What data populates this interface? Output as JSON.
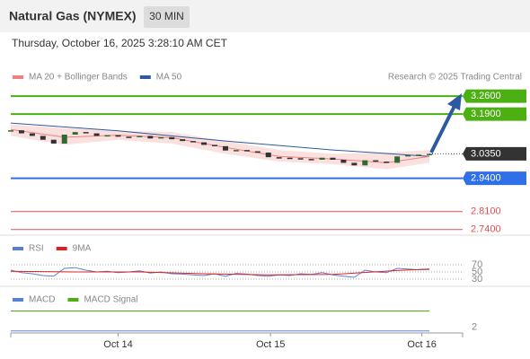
{
  "header": {
    "title": "Natural Gas (NYMEX)",
    "interval": "30 MIN",
    "timestamp": "Thursday, October 16, 2025 3:28:10 AM CET"
  },
  "chart_data": [
    {
      "type": "candlestick",
      "annotation": "Research © 2025 Trading Central",
      "up_color": "#2e6b2e",
      "down_color": "#333333",
      "values": [
        3.127,
        3.115,
        3.105,
        3.09,
        3.075,
        3.11,
        3.12,
        3.115,
        3.105,
        3.108,
        3.102,
        3.1,
        3.105,
        3.095,
        3.1,
        3.092,
        3.085,
        3.08,
        3.07,
        3.065,
        3.048,
        3.05,
        3.045,
        3.04,
        3.022,
        3.02,
        3.018,
        3.015,
        3.012,
        3.02,
        3.012,
        3.0,
        2.99,
        3.01,
        3.005,
        3.0,
        3.025,
        3.03,
        3.032,
        3.035
      ],
      "series": [
        {
          "name": "MA 20 + Bollinger Bands",
          "color": "#f08080",
          "band_color": "#fbe0e0",
          "x": [
            0,
            5,
            10,
            15,
            20,
            25,
            30,
            35,
            39
          ],
          "values": [
            3.13,
            3.1,
            3.108,
            3.098,
            3.06,
            3.025,
            3.015,
            3.0,
            3.025
          ],
          "upper": [
            3.15,
            3.135,
            3.125,
            3.12,
            3.085,
            3.05,
            3.035,
            3.04,
            3.05
          ],
          "lower": [
            3.105,
            3.07,
            3.09,
            3.075,
            3.035,
            3.005,
            2.995,
            2.975,
            3.0
          ]
        },
        {
          "name": "MA 50",
          "color": "#2c5aa0",
          "x": [
            0,
            10,
            20,
            30,
            39
          ],
          "values": [
            3.155,
            3.125,
            3.085,
            3.05,
            3.025
          ]
        }
      ],
      "levels": [
        {
          "value": 3.26,
          "label": "3.2600",
          "color": "#4caf12",
          "style": "filled"
        },
        {
          "value": 3.19,
          "label": "3.1900",
          "color": "#4caf12",
          "style": "filled"
        },
        {
          "value": 3.035,
          "label": "3.0350",
          "color": "#333333",
          "style": "current"
        },
        {
          "value": 2.94,
          "label": "2.9400",
          "color": "#2f6fe8",
          "style": "filled"
        },
        {
          "value": 2.81,
          "label": "2.8100",
          "color": "#e05050",
          "style": "plain"
        },
        {
          "value": 2.74,
          "label": "2.7400",
          "color": "#e05050",
          "style": "plain"
        }
      ],
      "xlim": [
        0,
        39
      ],
      "ylim": [
        2.725,
        3.355
      ],
      "xticks": [
        {
          "value": 10,
          "label": "Oct 14"
        },
        {
          "value": 24.2,
          "label": "Oct 15"
        },
        {
          "value": 38.3,
          "label": "Oct 16"
        }
      ]
    },
    {
      "type": "line",
      "series": [
        {
          "name": "RSI",
          "color": "#5b7fd6",
          "values": [
            55,
            48,
            45,
            40,
            38,
            60,
            62,
            55,
            50,
            52,
            48,
            50,
            53,
            47,
            50,
            45,
            44,
            42,
            40,
            45,
            38,
            46,
            44,
            40,
            38,
            42,
            40,
            45,
            43,
            48,
            42,
            38,
            35,
            55,
            50,
            48,
            60,
            58,
            56,
            57
          ]
        },
        {
          "name": "9MA",
          "color": "#e02020",
          "x": [
            0,
            6,
            12,
            18,
            24,
            30,
            36,
            39
          ],
          "values": [
            52,
            50,
            50,
            45,
            42,
            43,
            54,
            58
          ]
        }
      ],
      "xlim": [
        0,
        39
      ],
      "ylim": [
        20,
        80
      ],
      "yticks": [
        70,
        50,
        30
      ]
    },
    {
      "type": "line",
      "series": [
        {
          "name": "MACD",
          "color": "#5b7fd6",
          "x": [
            0,
            39
          ],
          "values": [
            1.5,
            1.5
          ]
        },
        {
          "name": "MACD Signal",
          "color": "#4caf12",
          "x": [
            0,
            39
          ],
          "values": [
            4.3,
            4.3
          ]
        }
      ],
      "xlim": [
        0,
        39
      ],
      "ylim": [
        1.1,
        5.5
      ],
      "yticks": [
        2
      ]
    }
  ]
}
